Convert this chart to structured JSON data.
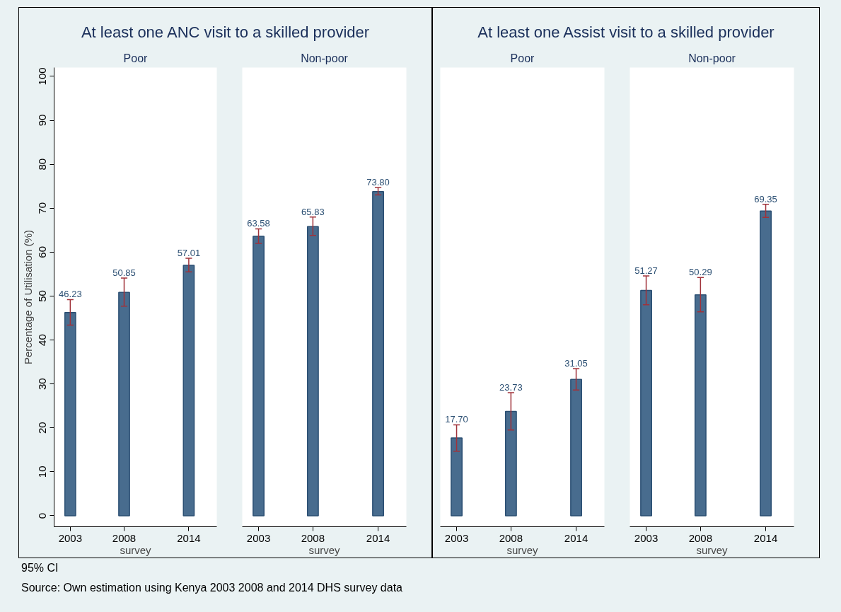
{
  "chart_data": [
    {
      "type": "bar",
      "title": "At least one ANC visit to a skilled provider",
      "subtitle": "Poor",
      "xlabel": "survey",
      "ylabel": "Percentage of Utilisation (%)",
      "x": [
        2003,
        2008,
        2014
      ],
      "values": [
        46.23,
        50.85,
        57.01
      ],
      "errors": [
        [
          43.4,
          49.2
        ],
        [
          47.7,
          54.1
        ],
        [
          55.5,
          58.6
        ]
      ],
      "value_labels": [
        "46.23",
        "50.85",
        "57.01"
      ],
      "color": "#486c8e",
      "xlim": [
        2001.5,
        2016.6
      ],
      "xticks": [
        2003,
        2008,
        2014
      ],
      "ylim": [
        -2.5,
        102
      ],
      "yticks": [
        0,
        10,
        20,
        30,
        40,
        50,
        60,
        70,
        80,
        90,
        100
      ],
      "grid": false,
      "annotations": [
        "95% CI",
        "Source: Own estimation using Kenya 2003 2008 and 2014 DHS survey data"
      ]
    },
    {
      "type": "bar",
      "subtitle": "Non-poor",
      "xlabel": "survey",
      "x": [
        2003,
        2008,
        2014
      ],
      "values": [
        63.58,
        65.83,
        73.8
      ],
      "errors": [
        [
          62.0,
          65.3
        ],
        [
          63.8,
          68.0
        ],
        [
          73.0,
          74.7
        ]
      ],
      "value_labels": [
        "63.58",
        "65.83",
        "73.80"
      ],
      "color": "#486c8e",
      "xlim": [
        2001.5,
        2016.6
      ],
      "xticks": [
        2003,
        2008,
        2014
      ],
      "ylim": [
        -2.5,
        102
      ],
      "yticks": [
        0,
        10,
        20,
        30,
        40,
        50,
        60,
        70,
        80,
        90,
        100
      ],
      "tick_labels": "x",
      "grid": false
    },
    {
      "type": "bar",
      "title": "At least one Assist visit to a skilled provider",
      "subtitle": "Poor",
      "xlabel": "survey",
      "x": [
        2003,
        2008,
        2014
      ],
      "values": [
        17.7,
        23.73,
        31.05
      ],
      "errors": [
        [
          14.7,
          20.7
        ],
        [
          19.5,
          28.0
        ],
        [
          28.6,
          33.5
        ]
      ],
      "value_labels": [
        "17.70",
        "23.73",
        "31.05"
      ],
      "color": "#486c8e",
      "xlim": [
        2001.5,
        2016.6
      ],
      "xticks": [
        2003,
        2008,
        2014
      ],
      "ylim": [
        -2.5,
        102
      ],
      "yticks": [
        0,
        10,
        20,
        30,
        40,
        50,
        60,
        70,
        80,
        90,
        100
      ],
      "tick_labels": "x",
      "grid": false
    },
    {
      "type": "bar",
      "subtitle": "Non-poor",
      "xlabel": "survey",
      "x": [
        2003,
        2008,
        2014
      ],
      "values": [
        51.27,
        50.29,
        69.35
      ],
      "errors": [
        [
          48.0,
          54.6
        ],
        [
          46.4,
          54.2
        ],
        [
          67.9,
          70.9
        ]
      ],
      "value_labels": [
        "51.27",
        "50.29",
        "69.35"
      ],
      "color": "#486c8e",
      "xlim": [
        2001.5,
        2016.6
      ],
      "xticks": [
        2003,
        2008,
        2014
      ],
      "ylim": [
        -2.5,
        102
      ],
      "yticks": [
        0,
        10,
        20,
        30,
        40,
        50,
        60,
        70,
        80,
        90,
        100
      ],
      "tick_labels": "x",
      "grid": false
    }
  ]
}
